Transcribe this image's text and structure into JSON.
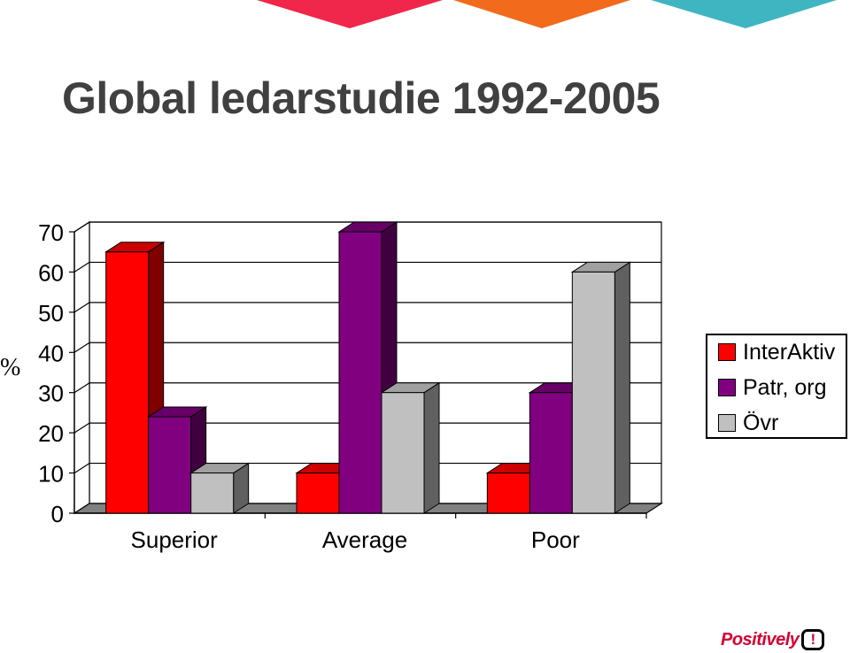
{
  "title": "Global ledarstudie 1992-2005",
  "logo": {
    "text": "Positively",
    "mark": "!"
  },
  "colors": {
    "series": [
      "#ff0000",
      "#800080",
      "#c0c0c0"
    ],
    "series_dark": [
      "#800000",
      "#400040",
      "#606060"
    ],
    "banner": [
      "#f0264a",
      "#f26a1b",
      "#3fb5c2"
    ]
  },
  "chart_data": {
    "type": "bar",
    "title": "",
    "xlabel": "",
    "ylabel": "%",
    "ylim": [
      0,
      70
    ],
    "yticks": [
      0,
      10,
      20,
      30,
      40,
      50,
      60,
      70
    ],
    "grid": true,
    "legend_position": "right",
    "categories": [
      "Superior",
      "Average",
      "Poor"
    ],
    "series": [
      {
        "name": "InterAktiv",
        "values": [
          65,
          10,
          10
        ]
      },
      {
        "name": "Patr, org",
        "values": [
          24,
          70,
          30
        ]
      },
      {
        "name": "Övr",
        "values": [
          10,
          30,
          60
        ]
      }
    ]
  }
}
